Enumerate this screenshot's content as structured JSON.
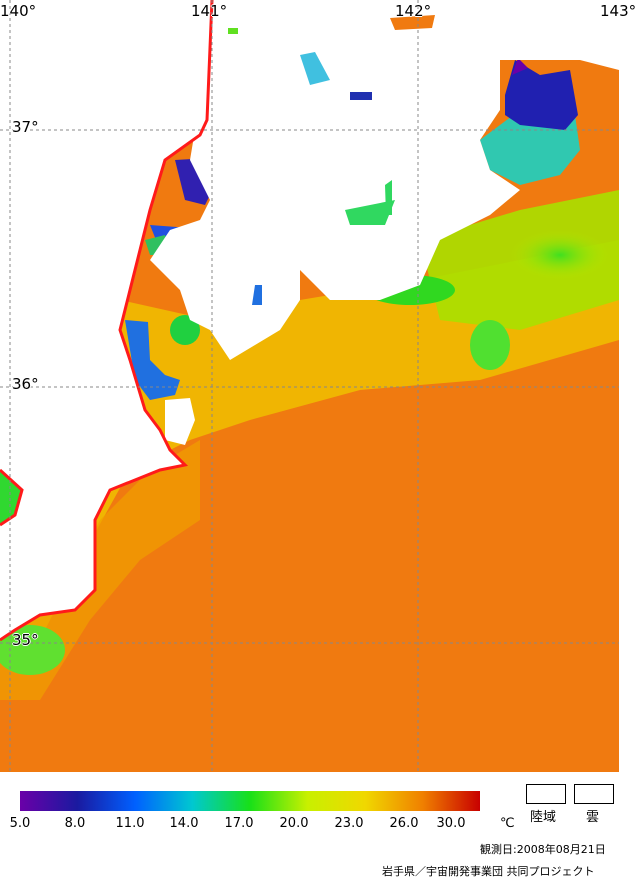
{
  "map": {
    "lon_labels": [
      "140°",
      "141°",
      "142°",
      "143°"
    ],
    "lat_labels": [
      "37°",
      "36°",
      "35°"
    ]
  },
  "legend": {
    "ticks": [
      "5.0",
      "8.0",
      "11.0",
      "14.0",
      "17.0",
      "20.0",
      "23.0",
      "26.0",
      "30.0"
    ],
    "unit": "℃",
    "colors": [
      "#6a00a8",
      "#1a1aa0",
      "#0060ff",
      "#00c8d0",
      "#18e018",
      "#c8f000",
      "#f0d800",
      "#f08000",
      "#c80000"
    ],
    "land_label": "陸域",
    "cloud_label": "雲"
  },
  "observation_date": "観測日:2008年08月21日",
  "credit": "岩手県／宇宙開発事業団 共同プロジェクト"
}
